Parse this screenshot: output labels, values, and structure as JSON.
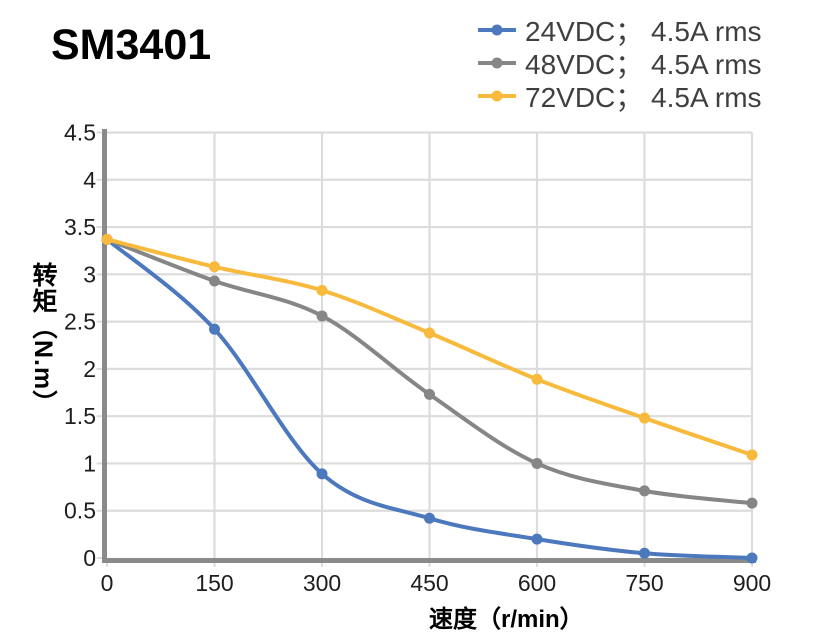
{
  "title": "SM3401",
  "axis_titles": {
    "x": "速度（r/min）",
    "y": "转矩（N.m）"
  },
  "chart_data": {
    "type": "line",
    "title": "SM3401",
    "xlabel": "速度（r/min）",
    "ylabel": "转矩（N.m）",
    "x": [
      0,
      150,
      300,
      450,
      600,
      750,
      900
    ],
    "series": [
      {
        "name": "24VDC； 4.5A rms",
        "short": "24vdc",
        "color": "#4C79BE",
        "values": [
          3.37,
          2.42,
          0.89,
          0.42,
          0.2,
          0.05,
          0.0
        ]
      },
      {
        "name": "48VDC； 4.5A rms",
        "short": "48vdc",
        "color": "#868686",
        "values": [
          3.37,
          2.93,
          2.56,
          1.73,
          1.0,
          0.71,
          0.58
        ]
      },
      {
        "name": "72VDC； 4.5A rms",
        "short": "72vdc",
        "color": "#F8BA3D",
        "values": [
          3.37,
          3.08,
          2.83,
          2.38,
          1.89,
          1.48,
          1.09
        ]
      }
    ],
    "xlim": [
      0,
      900
    ],
    "ylim": [
      0,
      4.5
    ],
    "xticks": [
      0,
      150,
      300,
      450,
      600,
      750,
      900
    ],
    "yticks": [
      0,
      0.5,
      1,
      1.5,
      2,
      2.5,
      3,
      3.5,
      4,
      4.5
    ],
    "grid": "both",
    "legend_position": "top-right",
    "marker": "circle",
    "smooth": true
  },
  "colors": {
    "background": "#FFFFFF",
    "grid": "#DCDCDC",
    "axis": "#8A8A8A",
    "tick_label": "#1E1E1E",
    "legend_text": "#3F3F3F",
    "title_text": "#000000"
  }
}
